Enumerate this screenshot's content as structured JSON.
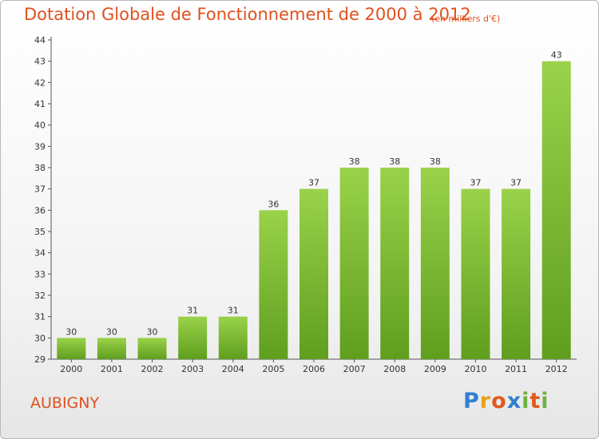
{
  "chart_data": {
    "type": "bar",
    "title": "Dotation Globale de Fonctionnement de 2000 à 2012",
    "subtitle": "(en milliers d'€)",
    "categories": [
      "2000",
      "2001",
      "2002",
      "2003",
      "2004",
      "2005",
      "2006",
      "2007",
      "2008",
      "2009",
      "2010",
      "2011",
      "2012"
    ],
    "values": [
      30,
      30,
      30,
      31,
      31,
      36,
      37,
      38,
      38,
      38,
      37,
      37,
      43
    ],
    "xlabel": "",
    "ylabel": "",
    "ylim": [
      29,
      44
    ],
    "yticks": [
      29,
      30,
      31,
      32,
      33,
      34,
      35,
      36,
      37,
      38,
      39,
      40,
      41,
      42,
      43,
      44
    ],
    "grid": false,
    "bar_color": "#8cc63f",
    "bar_color_dark": "#5f9e1e"
  },
  "footer": {
    "commune": "AUBIGNY",
    "logo_letters": [
      "P",
      "r",
      "o",
      "x",
      "i",
      "t",
      "i"
    ],
    "logo_colors": [
      "#2f7fd0",
      "#e8a11c",
      "#e05a1e",
      "#2f7fd0",
      "#6cb33f",
      "#e05a1e",
      "#6cb33f"
    ]
  }
}
